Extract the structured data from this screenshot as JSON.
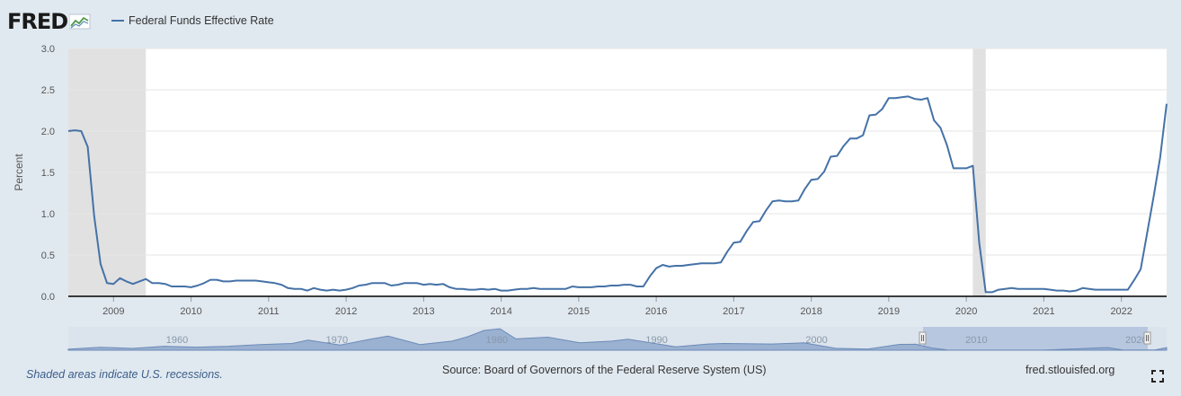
{
  "header": {
    "logo_text": "FRED",
    "legend_label": "Federal Funds Effective Rate"
  },
  "footer": {
    "recession_note": "Shaded areas indicate U.S. recessions.",
    "source": "Source: Board of Governors of the Federal Reserve System (US)",
    "site": "fred.stlouisfed.org"
  },
  "colors": {
    "line": "#4572a7",
    "recession": "#e1e1e1",
    "background": "#e1e9f0",
    "navigator_fill": "#8fa8cc",
    "navigator_selected": "#b8c7e0"
  },
  "icons": {
    "logo": "line-chart-icon",
    "fullscreen": "fullscreen-icon"
  },
  "chart_data": {
    "type": "line",
    "title": "",
    "xlabel": "",
    "ylabel": "Percent",
    "ylim": [
      0,
      3.0
    ],
    "xlim": [
      "2008-06",
      "2022-08"
    ],
    "yticks": [
      "0.0",
      "0.5",
      "1.0",
      "1.5",
      "2.0",
      "2.5",
      "3.0"
    ],
    "xticks": [
      "2009",
      "2010",
      "2011",
      "2012",
      "2013",
      "2014",
      "2015",
      "2016",
      "2017",
      "2018",
      "2019",
      "2020",
      "2021",
      "2022"
    ],
    "grid": true,
    "recessions": [
      [
        "2008-06",
        "2009-06"
      ],
      [
        "2020-02",
        "2020-04"
      ]
    ],
    "series": [
      {
        "name": "Federal Funds Effective Rate",
        "x": [
          "2008-06",
          "2008-07",
          "2008-08",
          "2008-09",
          "2008-10",
          "2008-11",
          "2008-12",
          "2009-01",
          "2009-02",
          "2009-03",
          "2009-04",
          "2009-05",
          "2009-06",
          "2009-07",
          "2009-08",
          "2009-09",
          "2009-10",
          "2009-11",
          "2009-12",
          "2010-01",
          "2010-02",
          "2010-03",
          "2010-04",
          "2010-05",
          "2010-06",
          "2010-07",
          "2010-08",
          "2010-09",
          "2010-10",
          "2010-11",
          "2010-12",
          "2011-01",
          "2011-02",
          "2011-03",
          "2011-04",
          "2011-05",
          "2011-06",
          "2011-07",
          "2011-08",
          "2011-09",
          "2011-10",
          "2011-11",
          "2011-12",
          "2012-01",
          "2012-02",
          "2012-03",
          "2012-04",
          "2012-05",
          "2012-06",
          "2012-07",
          "2012-08",
          "2012-09",
          "2012-10",
          "2012-11",
          "2012-12",
          "2013-01",
          "2013-02",
          "2013-03",
          "2013-04",
          "2013-05",
          "2013-06",
          "2013-07",
          "2013-08",
          "2013-09",
          "2013-10",
          "2013-11",
          "2013-12",
          "2014-01",
          "2014-02",
          "2014-03",
          "2014-04",
          "2014-05",
          "2014-06",
          "2014-07",
          "2014-08",
          "2014-09",
          "2014-10",
          "2014-11",
          "2014-12",
          "2015-01",
          "2015-02",
          "2015-03",
          "2015-04",
          "2015-05",
          "2015-06",
          "2015-07",
          "2015-08",
          "2015-09",
          "2015-10",
          "2015-11",
          "2015-12",
          "2016-01",
          "2016-02",
          "2016-03",
          "2016-04",
          "2016-05",
          "2016-06",
          "2016-07",
          "2016-08",
          "2016-09",
          "2016-10",
          "2016-11",
          "2016-12",
          "2017-01",
          "2017-02",
          "2017-03",
          "2017-04",
          "2017-05",
          "2017-06",
          "2017-07",
          "2017-08",
          "2017-09",
          "2017-10",
          "2017-11",
          "2017-12",
          "2018-01",
          "2018-02",
          "2018-03",
          "2018-04",
          "2018-05",
          "2018-06",
          "2018-07",
          "2018-08",
          "2018-09",
          "2018-10",
          "2018-11",
          "2018-12",
          "2019-01",
          "2019-02",
          "2019-03",
          "2019-04",
          "2019-05",
          "2019-06",
          "2019-07",
          "2019-08",
          "2019-09",
          "2019-10",
          "2019-11",
          "2019-12",
          "2020-01",
          "2020-02",
          "2020-03",
          "2020-04",
          "2020-05",
          "2020-06",
          "2020-07",
          "2020-08",
          "2020-09",
          "2020-10",
          "2020-11",
          "2020-12",
          "2021-01",
          "2021-02",
          "2021-03",
          "2021-04",
          "2021-05",
          "2021-06",
          "2021-07",
          "2021-08",
          "2021-09",
          "2021-10",
          "2021-11",
          "2021-12",
          "2022-01",
          "2022-02",
          "2022-03",
          "2022-04",
          "2022-05",
          "2022-06",
          "2022-07",
          "2022-08"
        ],
        "values": [
          2.0,
          2.01,
          2.0,
          1.81,
          0.97,
          0.39,
          0.16,
          0.15,
          0.22,
          0.18,
          0.15,
          0.18,
          0.21,
          0.16,
          0.16,
          0.15,
          0.12,
          0.12,
          0.12,
          0.11,
          0.13,
          0.16,
          0.2,
          0.2,
          0.18,
          0.18,
          0.19,
          0.19,
          0.19,
          0.19,
          0.18,
          0.17,
          0.16,
          0.14,
          0.1,
          0.09,
          0.09,
          0.07,
          0.1,
          0.08,
          0.07,
          0.08,
          0.07,
          0.08,
          0.1,
          0.13,
          0.14,
          0.16,
          0.16,
          0.16,
          0.13,
          0.14,
          0.16,
          0.16,
          0.16,
          0.14,
          0.15,
          0.14,
          0.15,
          0.11,
          0.09,
          0.09,
          0.08,
          0.08,
          0.09,
          0.08,
          0.09,
          0.07,
          0.07,
          0.08,
          0.09,
          0.09,
          0.1,
          0.09,
          0.09,
          0.09,
          0.09,
          0.09,
          0.12,
          0.11,
          0.11,
          0.11,
          0.12,
          0.12,
          0.13,
          0.13,
          0.14,
          0.14,
          0.12,
          0.12,
          0.24,
          0.34,
          0.38,
          0.36,
          0.37,
          0.37,
          0.38,
          0.39,
          0.4,
          0.4,
          0.4,
          0.41,
          0.54,
          0.65,
          0.66,
          0.79,
          0.9,
          0.91,
          1.04,
          1.15,
          1.16,
          1.15,
          1.15,
          1.16,
          1.3,
          1.41,
          1.42,
          1.51,
          1.69,
          1.7,
          1.82,
          1.91,
          1.91,
          1.95,
          2.19,
          2.2,
          2.27,
          2.4,
          2.4,
          2.41,
          2.42,
          2.39,
          2.38,
          2.4,
          2.13,
          2.04,
          1.83,
          1.55,
          1.55,
          1.55,
          1.58,
          0.65,
          0.05,
          0.05,
          0.08,
          0.09,
          0.1,
          0.09,
          0.09,
          0.09,
          0.09,
          0.09,
          0.08,
          0.07,
          0.07,
          0.06,
          0.07,
          0.1,
          0.09,
          0.08,
          0.08,
          0.08,
          0.08,
          0.08,
          0.08,
          0.2,
          0.33,
          0.77,
          1.21,
          1.68,
          2.33
        ]
      }
    ],
    "navigator": {
      "xticks": [
        "1960",
        "1970",
        "1980",
        "1990",
        "2000",
        "2010",
        "2020"
      ]
    }
  }
}
